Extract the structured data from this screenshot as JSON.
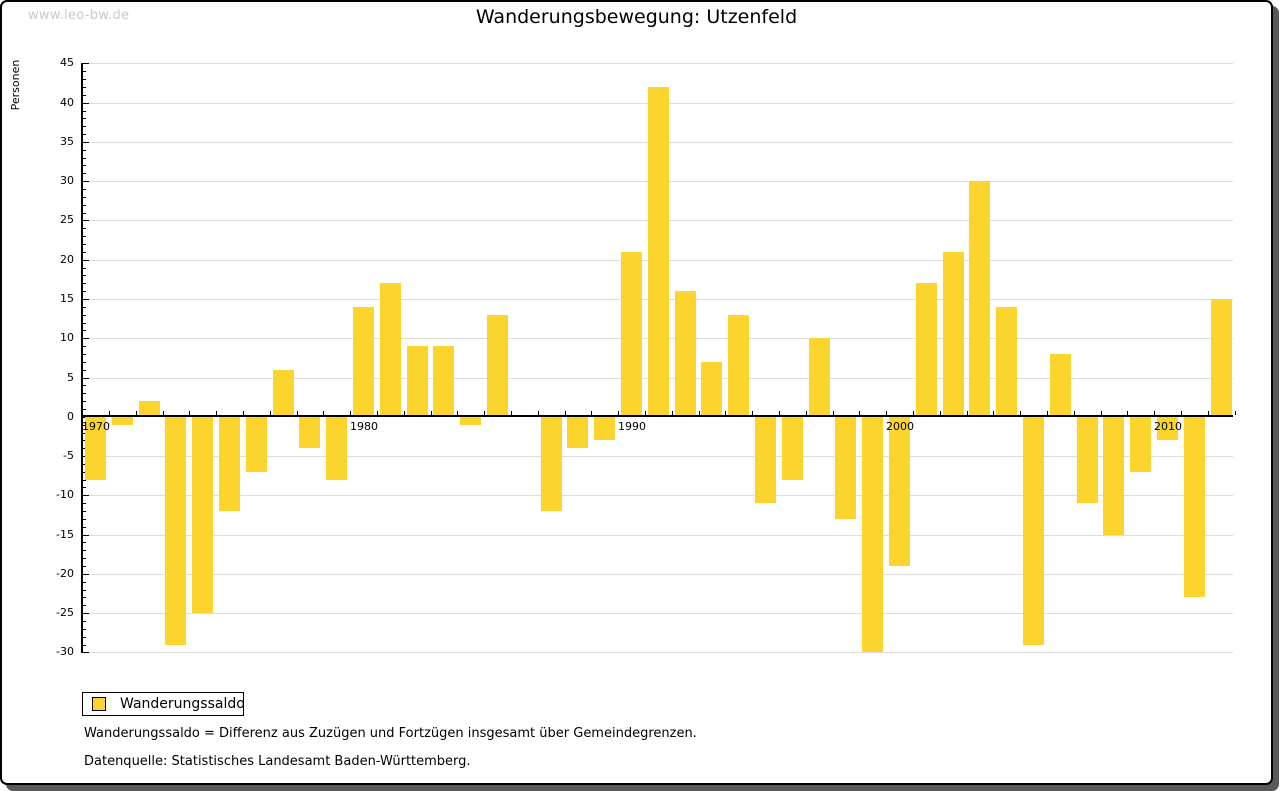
{
  "watermark": "www.leo-bw.de",
  "title": "Wanderungsbewegung: Utzenfeld",
  "legend": {
    "label": "Wanderungssaldo",
    "swatch_color": "#fbd52d"
  },
  "footnotes": [
    "Wanderungssaldo = Differenz aus Zuzügen und Fortzügen insgesamt über Gemeindegrenzen.",
    "Datenquelle: Statistisches Landesamt Baden-Württemberg."
  ],
  "colors": {
    "bar": "#fbd52d",
    "grid": "#dcdcdc",
    "axis": "#000000",
    "watermark": "#c9c9c9",
    "page_shadow": "#59595b"
  },
  "chart_data": {
    "type": "bar",
    "title": "Wanderungsbewegung: Utzenfeld",
    "xlabel": "",
    "ylabel": "Personen",
    "categories": [
      1970,
      1971,
      1972,
      1973,
      1974,
      1975,
      1976,
      1977,
      1978,
      1979,
      1980,
      1981,
      1982,
      1983,
      1984,
      1985,
      1986,
      1987,
      1988,
      1989,
      1990,
      1991,
      1992,
      1993,
      1994,
      1995,
      1996,
      1997,
      1998,
      1999,
      2000,
      2001,
      2002,
      2003,
      2004,
      2005,
      2006,
      2007,
      2008,
      2009,
      2010,
      2011,
      2012
    ],
    "series": [
      {
        "name": "Wanderungssaldo",
        "values": [
          -8,
          -1,
          2,
          -29,
          -25,
          -12,
          -7,
          6,
          -4,
          -8,
          14,
          17,
          9,
          9,
          -1,
          13,
          0,
          -12,
          -4,
          -3,
          21,
          42,
          16,
          7,
          13,
          -11,
          -8,
          10,
          -13,
          -30,
          -19,
          17,
          21,
          30,
          14,
          -29,
          8,
          -11,
          -15,
          -7,
          -3,
          -23,
          15
        ]
      }
    ],
    "ylim": [
      -30,
      45
    ],
    "ytick_step": 5,
    "ytick_minor_step": 1,
    "xtick_labels": [
      1970,
      1980,
      1990,
      2000,
      2010
    ],
    "grid": "horizontal",
    "legend_position": "bottom-left",
    "bar_color": "#fbd52d"
  }
}
